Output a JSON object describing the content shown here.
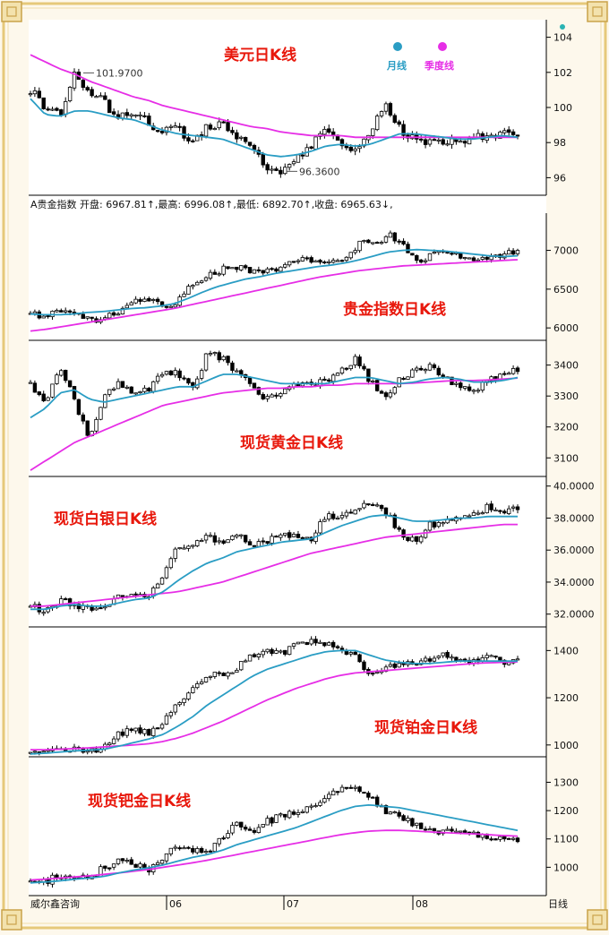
{
  "source_label": "威尔鑫咨询",
  "period_label": "日线",
  "x_labels": [
    "06",
    "07",
    "08"
  ],
  "legend": {
    "month_label": "月线",
    "quarter_label": "季度线",
    "month_color": "#2a9dc4",
    "quarter_color": "#e62ee6"
  },
  "chart_data": [
    {
      "type": "candlestick",
      "title": "美元日K线",
      "y_ticks": [
        "104",
        "102",
        "100",
        "98",
        "96"
      ],
      "ylim": [
        95,
        105
      ],
      "annotations": [
        {
          "text": "101.9700",
          "value": 101.97
        },
        {
          "text": "96.3600",
          "value": 96.36
        }
      ],
      "waypoints": [
        101.0,
        100.0,
        99.6,
        101.9,
        100.9,
        100.3,
        99.3,
        99.9,
        99.1,
        98.6,
        98.8,
        98.0,
        98.9,
        99.0,
        98.4,
        97.6,
        96.7,
        96.4,
        97.2,
        97.9,
        98.6,
        98.1,
        97.4,
        98.6,
        100.1,
        98.8,
        98.1,
        98.0,
        98.1,
        97.9,
        98.4,
        98.2,
        98.6,
        98.3
      ],
      "ma_month": [
        100.5,
        99.6,
        99.5,
        99.8,
        99.8,
        99.6,
        99.4,
        99.3,
        99.0,
        98.7,
        98.5,
        98.4,
        98.3,
        98.2,
        97.9,
        97.6,
        97.3,
        97.2,
        97.3,
        97.5,
        97.8,
        97.9,
        97.8,
        97.9,
        98.2,
        98.5,
        98.5,
        98.4,
        98.3,
        98.2,
        98.2,
        98.3,
        98.4,
        98.3
      ],
      "ma_quarter": [
        103.0,
        102.6,
        102.2,
        101.9,
        101.5,
        101.2,
        100.9,
        100.6,
        100.4,
        100.1,
        99.9,
        99.7,
        99.5,
        99.3,
        99.1,
        98.9,
        98.8,
        98.6,
        98.5,
        98.4,
        98.4,
        98.4,
        98.3,
        98.3,
        98.3,
        98.3,
        98.3,
        98.3,
        98.3,
        98.3,
        98.3,
        98.3,
        98.3,
        98.3
      ]
    },
    {
      "type": "candlestick",
      "title": "贵金指数日K线",
      "info_line": "A贵金指数 开盘: 6967.81↑,最高: 6996.08↑,最低: 6892.70↑,收盘: 6965.63↓,",
      "y_ticks": [
        "7000",
        "6500",
        "6000"
      ],
      "ylim": [
        5840,
        7480
      ],
      "waypoints": [
        6220,
        6130,
        6230,
        6200,
        6120,
        6100,
        6200,
        6350,
        6380,
        6300,
        6310,
        6500,
        6650,
        6720,
        6800,
        6760,
        6720,
        6760,
        6820,
        6880,
        6860,
        6840,
        6900,
        7100,
        7060,
        7220,
        7050,
        6820,
        6950,
        6980,
        6920,
        6880,
        6870,
        6960,
        6970
      ],
      "ma_month": [
        6180,
        6170,
        6170,
        6180,
        6200,
        6210,
        6230,
        6250,
        6260,
        6280,
        6310,
        6380,
        6460,
        6530,
        6580,
        6630,
        6660,
        6700,
        6730,
        6760,
        6790,
        6810,
        6840,
        6880,
        6930,
        6980,
        7000,
        7010,
        7000,
        6990,
        6970,
        6950,
        6930,
        6920,
        6930
      ],
      "ma_quarter": [
        5960,
        5980,
        6010,
        6040,
        6070,
        6100,
        6130,
        6160,
        6190,
        6220,
        6250,
        6290,
        6330,
        6370,
        6410,
        6450,
        6490,
        6530,
        6570,
        6610,
        6650,
        6680,
        6710,
        6740,
        6760,
        6780,
        6800,
        6810,
        6820,
        6830,
        6840,
        6850,
        6860,
        6870,
        6880
      ]
    },
    {
      "type": "candlestick",
      "title": "现货黄金日K线",
      "y_ticks": [
        "3400",
        "3300",
        "3200",
        "3100"
      ],
      "ylim": [
        3040,
        3480
      ],
      "waypoints": [
        3340,
        3280,
        3400,
        3280,
        3160,
        3300,
        3340,
        3310,
        3320,
        3380,
        3370,
        3320,
        3440,
        3420,
        3380,
        3330,
        3290,
        3320,
        3340,
        3330,
        3350,
        3380,
        3420,
        3350,
        3290,
        3350,
        3380,
        3400,
        3360,
        3330,
        3320,
        3350,
        3370,
        3390
      ],
      "ma_month": [
        3230,
        3260,
        3310,
        3320,
        3290,
        3280,
        3290,
        3300,
        3310,
        3320,
        3330,
        3330,
        3350,
        3370,
        3370,
        3360,
        3350,
        3340,
        3340,
        3340,
        3340,
        3350,
        3360,
        3360,
        3350,
        3340,
        3345,
        3355,
        3360,
        3355,
        3345,
        3345,
        3350,
        3360
      ],
      "ma_quarter": [
        3060,
        3090,
        3120,
        3150,
        3170,
        3190,
        3210,
        3230,
        3250,
        3270,
        3280,
        3290,
        3300,
        3310,
        3315,
        3320,
        3325,
        3325,
        3330,
        3330,
        3335,
        3335,
        3340,
        3340,
        3340,
        3340,
        3342,
        3345,
        3348,
        3350,
        3350,
        3352,
        3355,
        3358
      ]
    },
    {
      "type": "candlestick",
      "title": "现货白银日K线",
      "y_ticks": [
        "40.0000",
        "38.0000",
        "36.0000",
        "34.0000",
        "32.0000"
      ],
      "ylim": [
        31.2,
        40.6
      ],
      "waypoints": [
        32.5,
        32.2,
        32.8,
        32.6,
        32.2,
        32.6,
        33.1,
        33.4,
        33.2,
        34.5,
        36.2,
        36.5,
        36.8,
        36.5,
        37.0,
        36.4,
        36.6,
        36.8,
        37.0,
        36.6,
        38.2,
        38.0,
        38.5,
        39.1,
        38.4,
        37.2,
        36.5,
        37.5,
        37.9,
        38.0,
        38.2,
        38.7,
        38.5,
        38.6
      ],
      "ma_month": [
        32.3,
        32.3,
        32.5,
        32.6,
        32.5,
        32.5,
        32.7,
        32.9,
        33.0,
        33.4,
        34.1,
        34.7,
        35.2,
        35.5,
        35.9,
        36.1,
        36.3,
        36.5,
        36.6,
        36.7,
        37.1,
        37.5,
        37.8,
        38.1,
        38.2,
        38.0,
        37.8,
        37.8,
        37.9,
        38.0,
        38.0,
        38.1,
        38.1,
        38.1
      ],
      "ma_quarter": [
        32.5,
        32.5,
        32.6,
        32.7,
        32.8,
        32.9,
        33.0,
        33.1,
        33.2,
        33.3,
        33.4,
        33.6,
        33.8,
        34.0,
        34.3,
        34.6,
        34.9,
        35.2,
        35.5,
        35.8,
        36.0,
        36.2,
        36.4,
        36.6,
        36.8,
        36.9,
        37.0,
        37.1,
        37.2,
        37.3,
        37.4,
        37.5,
        37.6,
        37.6
      ]
    },
    {
      "type": "candlestick",
      "title": "现货铂金日K线",
      "y_ticks": [
        "1400",
        "1200",
        "1000"
      ],
      "ylim": [
        950,
        1500
      ],
      "waypoints": [
        975,
        970,
        980,
        985,
        975,
        990,
        1050,
        1060,
        1050,
        1100,
        1180,
        1250,
        1300,
        1290,
        1330,
        1380,
        1400,
        1390,
        1420,
        1440,
        1430,
        1400,
        1380,
        1300,
        1330,
        1340,
        1350,
        1360,
        1380,
        1360,
        1350,
        1370,
        1350,
        1360
      ],
      "ma_month": [
        962,
        965,
        970,
        975,
        978,
        982,
        995,
        1010,
        1025,
        1045,
        1080,
        1120,
        1170,
        1210,
        1250,
        1290,
        1320,
        1340,
        1360,
        1380,
        1395,
        1400,
        1400,
        1380,
        1360,
        1350,
        1345,
        1345,
        1350,
        1355,
        1355,
        1355,
        1355,
        1355
      ],
      "ma_quarter": [
        980,
        980,
        982,
        985,
        988,
        992,
        996,
        1000,
        1005,
        1015,
        1030,
        1050,
        1075,
        1100,
        1130,
        1160,
        1190,
        1215,
        1240,
        1260,
        1280,
        1295,
        1305,
        1310,
        1315,
        1320,
        1325,
        1330,
        1335,
        1340,
        1345,
        1348,
        1350,
        1352
      ]
    },
    {
      "type": "candlestick",
      "title": "现货钯金日K线",
      "y_ticks": [
        "1300",
        "1200",
        "1100",
        "1000"
      ],
      "ylim": [
        900,
        1390
      ],
      "waypoints": [
        960,
        950,
        970,
        965,
        960,
        1000,
        1020,
        1010,
        990,
        1040,
        1070,
        1060,
        1050,
        1110,
        1150,
        1120,
        1160,
        1180,
        1200,
        1210,
        1240,
        1280,
        1270,
        1250,
        1200,
        1180,
        1150,
        1130,
        1120,
        1130,
        1120,
        1110,
        1100,
        1090
      ],
      "ma_month": [
        945,
        948,
        952,
        958,
        962,
        968,
        980,
        990,
        998,
        1008,
        1022,
        1035,
        1045,
        1060,
        1080,
        1095,
        1110,
        1125,
        1140,
        1160,
        1180,
        1200,
        1215,
        1220,
        1215,
        1210,
        1200,
        1190,
        1180,
        1170,
        1160,
        1150,
        1140,
        1130
      ],
      "ma_quarter": [
        955,
        958,
        962,
        966,
        970,
        975,
        980,
        986,
        992,
        1000,
        1008,
        1016,
        1025,
        1035,
        1045,
        1055,
        1065,
        1075,
        1085,
        1095,
        1105,
        1115,
        1122,
        1128,
        1130,
        1130,
        1128,
        1125,
        1122,
        1120,
        1118,
        1115,
        1112,
        1110
      ]
    }
  ]
}
